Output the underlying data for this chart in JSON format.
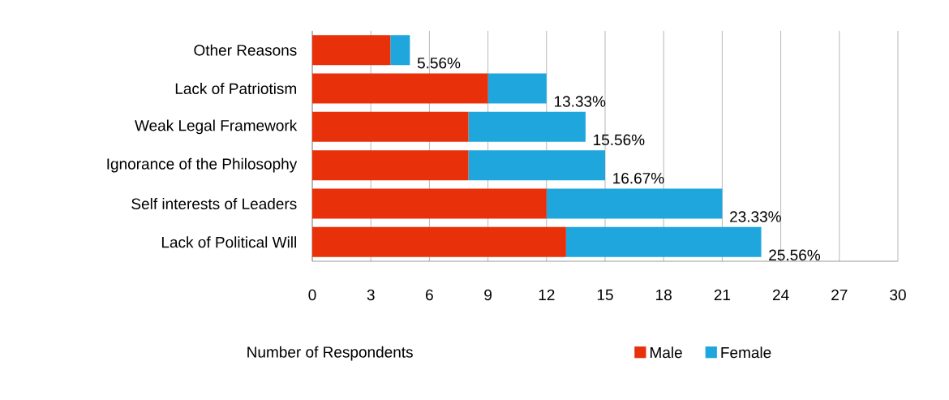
{
  "chart_data": {
    "type": "bar",
    "orientation": "horizontal",
    "stacked": true,
    "categories": [
      "Other Reasons",
      "Lack of Patriotism",
      "Weak Legal Framework",
      "Ignorance of the Philosophy",
      "Self interests of Leaders",
      "Lack of Political Will"
    ],
    "series": [
      {
        "name": "Male",
        "color": "#e8300a",
        "values": [
          4,
          9,
          8,
          8,
          12,
          13
        ]
      },
      {
        "name": "Female",
        "color": "#1fa6dc",
        "values": [
          1,
          3,
          6,
          7,
          9,
          10
        ]
      }
    ],
    "annotations": [
      {
        "text": "5.56%",
        "x": 5,
        "y": "Other Reasons"
      },
      {
        "text": "13.33%",
        "x": 12,
        "y": "Lack of Patriotism"
      },
      {
        "text": "15.56%",
        "x": 14,
        "y": "Weak Legal Framework"
      },
      {
        "text": "16.67%",
        "x": 15,
        "y": "Ignorance of the Philosophy"
      },
      {
        "text": "23.33%",
        "x": 21,
        "y": "Self interests of Leaders"
      },
      {
        "text": "25.56%",
        "x": 23,
        "y": "Lack of Political Will"
      }
    ],
    "xlabel": "Number of Respondents",
    "xlim": [
      0,
      30
    ],
    "xticks": [
      0,
      3,
      6,
      9,
      12,
      15,
      18,
      21,
      24,
      27,
      30
    ],
    "grid": "x",
    "legend": "bottom"
  }
}
